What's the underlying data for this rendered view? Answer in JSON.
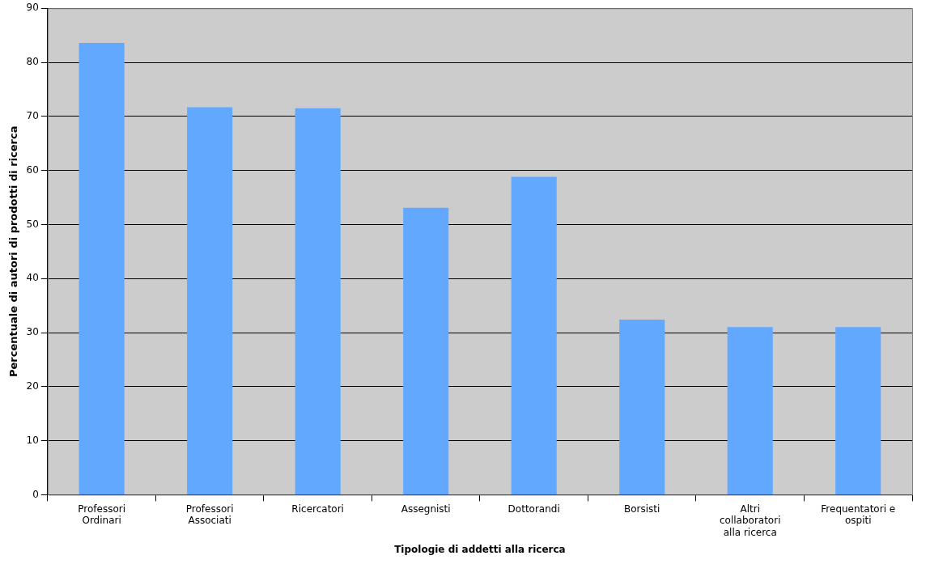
{
  "chart_data": {
    "type": "bar",
    "xlabel": "Tipologie di addetti alla ricerca",
    "ylabel": "Percentuale di autori di prodotti di ricerca",
    "categories": [
      "Professori\nOrdinari",
      "Professori\nAssociati",
      "Ricercatori",
      "Assegnisti",
      "Dottorandi",
      "Borsisti",
      "Altri\ncollaboratori\nalla ricerca",
      "Frequentatori e\nospiti"
    ],
    "values": [
      83.6,
      71.7,
      71.5,
      53.1,
      58.8,
      32.4,
      31.0,
      31.0
    ],
    "color": "#62a8ff",
    "ylim": [
      0,
      90
    ],
    "yticks": [
      0,
      10,
      20,
      30,
      40,
      50,
      60,
      70,
      80,
      90
    ],
    "grid": "y",
    "legend": false
  }
}
